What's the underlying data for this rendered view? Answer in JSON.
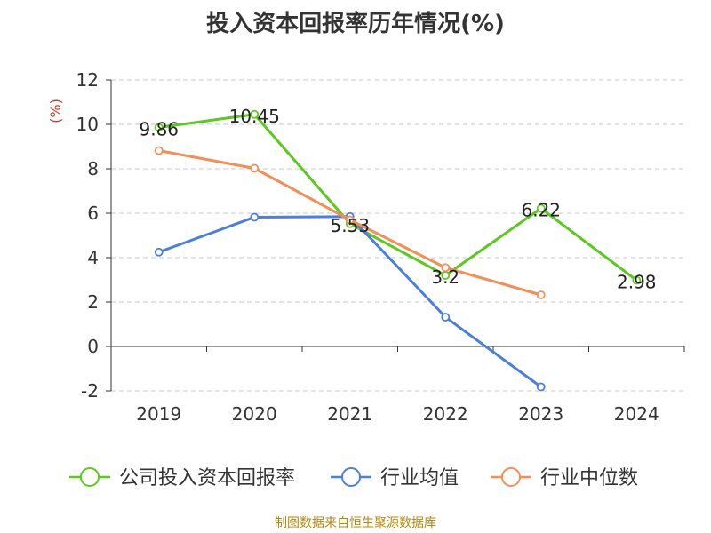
{
  "title": "投入资本回报率历年情况(%)",
  "source": "制图数据来自恒生聚源数据库",
  "chart_data": {
    "type": "line",
    "title": "投入资本回报率历年情况(%)",
    "ylabel": "(%)",
    "xlabel": "",
    "categories": [
      "2019",
      "2020",
      "2021",
      "2022",
      "2023",
      "2024"
    ],
    "ylim": [
      -2,
      12
    ],
    "yticks": [
      -2,
      0,
      2,
      4,
      6,
      8,
      10,
      12
    ],
    "grid": true,
    "legend_position": "bottom",
    "series": [
      {
        "name": "公司投入资本回报率",
        "color": "#5cc91f",
        "values": [
          9.86,
          10.45,
          5.53,
          3.2,
          6.22,
          2.98
        ],
        "labels": [
          "9.86",
          "10.45",
          "5.53",
          "3.2",
          "6.22",
          "2.98"
        ]
      },
      {
        "name": "行业均值",
        "color": "#4a7fe0",
        "values": [
          4.25,
          5.82,
          5.85,
          1.32,
          -1.82,
          null
        ]
      },
      {
        "name": "行业中位数",
        "color": "#f58d55",
        "values": [
          8.82,
          8.02,
          5.7,
          3.55,
          2.32,
          null
        ]
      }
    ]
  }
}
